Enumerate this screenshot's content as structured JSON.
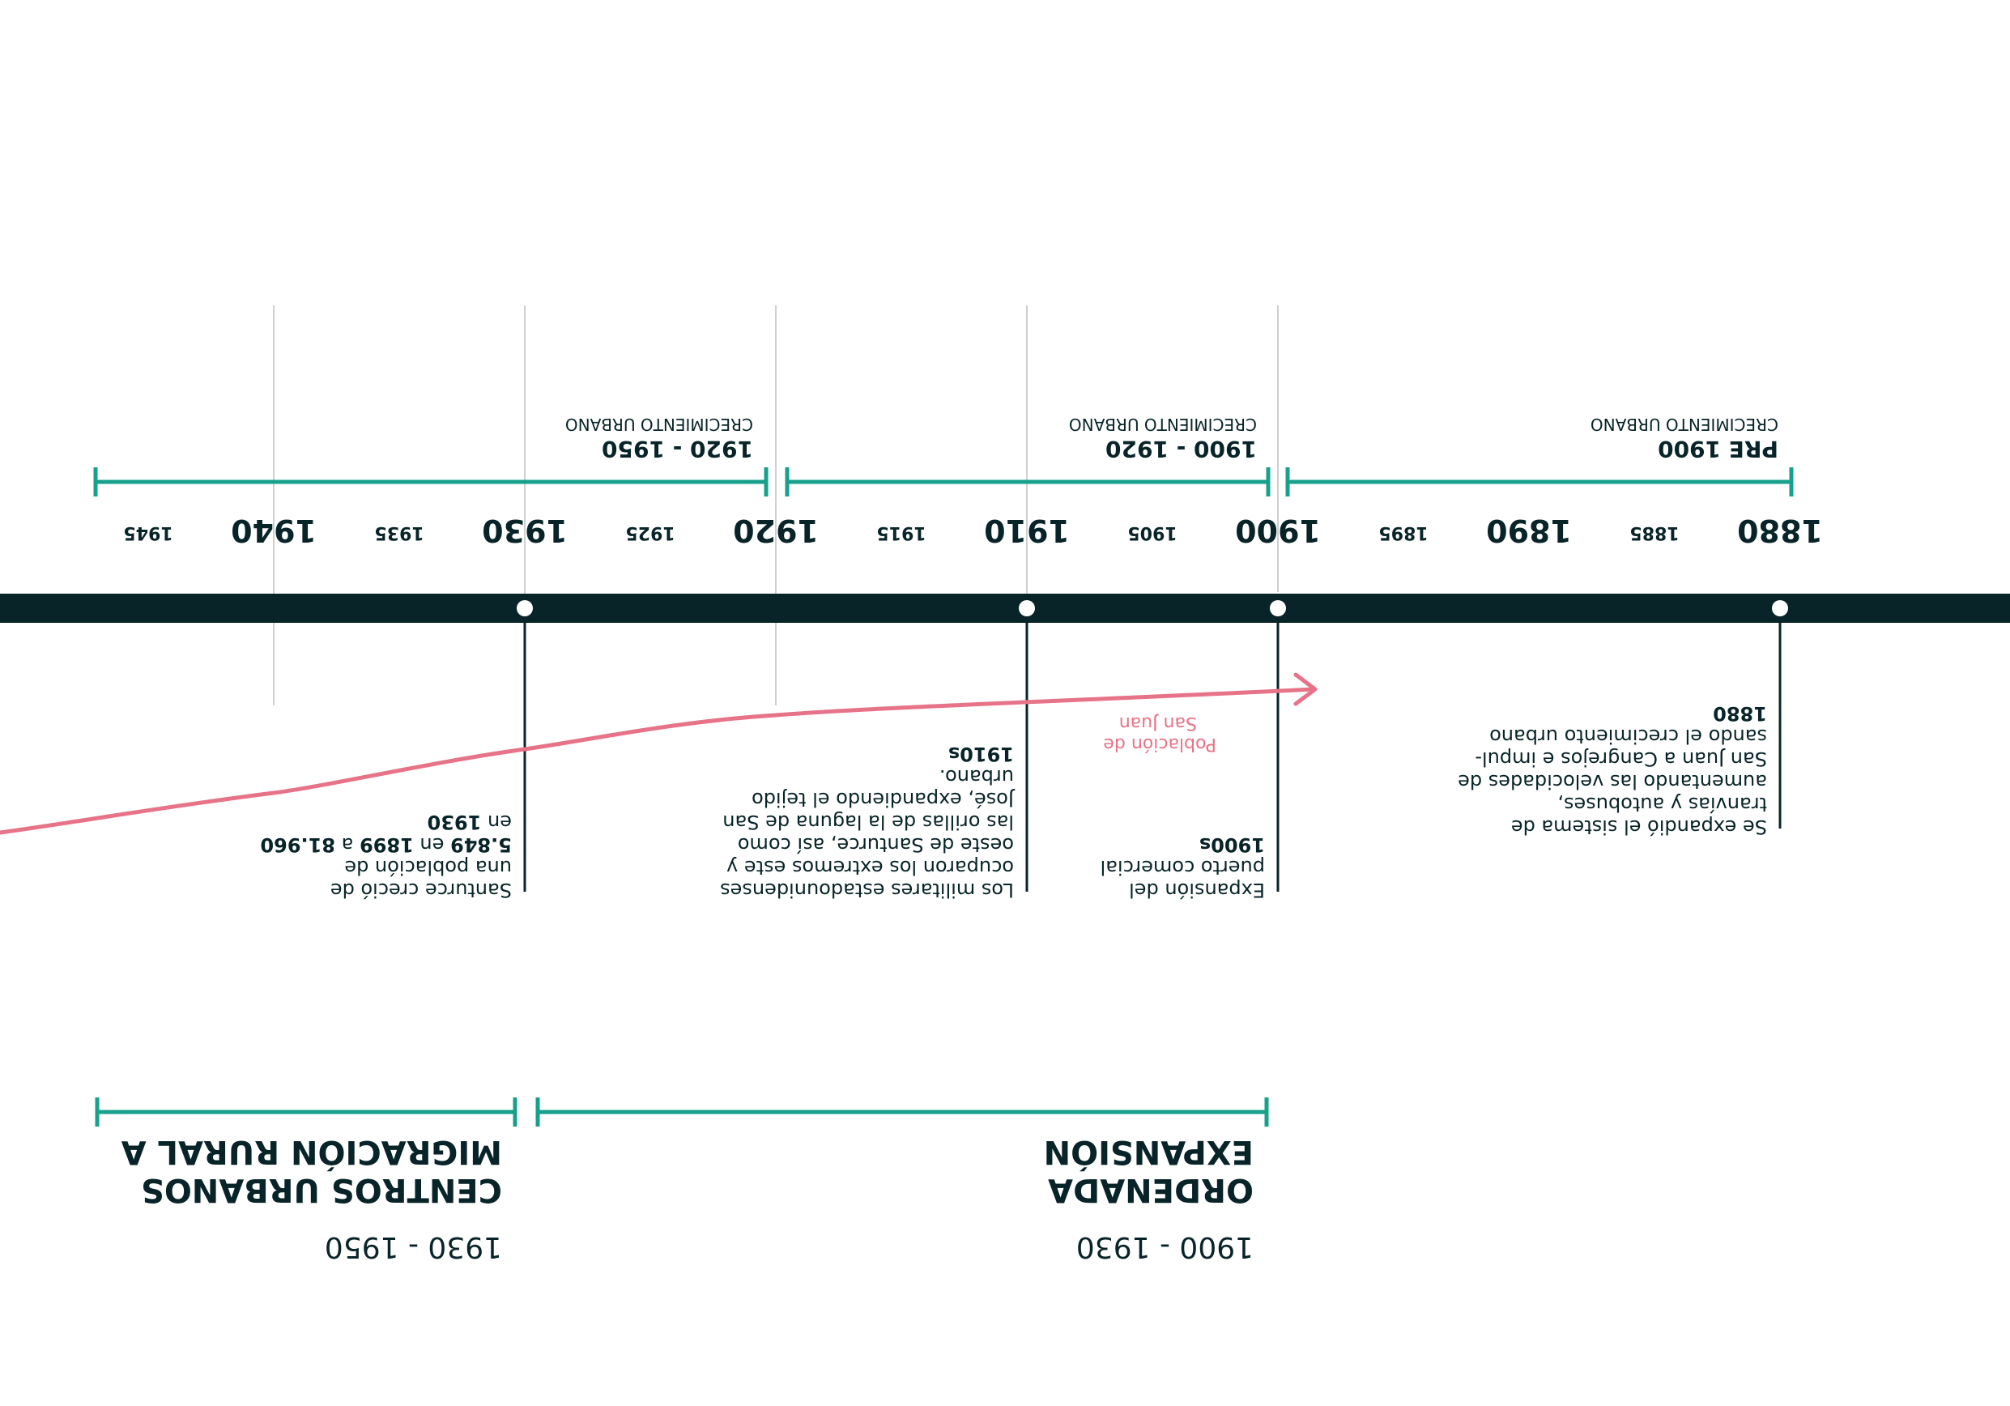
{
  "colors": {
    "axis": "#082428",
    "teal": "#17a08b",
    "pink": "#e77388",
    "grid": "#cfcfcf",
    "text": "#082428"
  },
  "years_major": [
    "1880",
    "1890",
    "1900",
    "1910",
    "1920",
    "1930",
    "1940"
  ],
  "years_minor": [
    "1885",
    "1895",
    "1905",
    "1915",
    "1925",
    "1935",
    "1945"
  ],
  "growth_periods": [
    {
      "id": "pre1900",
      "range": "PRE 1900",
      "label": "CRECIMIENTO URBANO"
    },
    {
      "id": "p1900",
      "range": "1900 - 1920",
      "label": "CRECIMIENTO URBANO"
    },
    {
      "id": "p1920",
      "range": "1920 - 1950",
      "label": "CRECIMIENTO URBANO"
    }
  ],
  "events": [
    {
      "id": "e1880",
      "year": "1880",
      "lines": [
        "Se expandió el sistema de",
        "tranvías y autobuses,",
        "aumentando las velocidades de",
        "San Juan a Cangrejos e impul-",
        "sando el crecimiento urbano"
      ]
    },
    {
      "id": "e1900",
      "year": "1900s",
      "lines": [
        "Expansión del",
        "puerto comercial"
      ]
    },
    {
      "id": "e1910",
      "year": "1910s",
      "lines": [
        "Los militares estadounidenses",
        "ocuparon los extremos este y",
        "oeste de Santurce, así como",
        "las orillas de la laguna de San",
        "José, expandiendo el tejido",
        "urbano."
      ]
    },
    {
      "id": "e1930",
      "line1": "Santurce creció de",
      "line2": "una población de",
      "pop_a": "5.849",
      "en1": "en",
      "year_a": "1899",
      "a": "a",
      "pop_b": "81.960",
      "en2": "en",
      "year_b": "1930"
    }
  ],
  "population_label": [
    "Población de",
    "San Juan"
  ],
  "phases": [
    {
      "id": "expansion",
      "title": [
        "EXPANSIÓN",
        "ORDENADA"
      ],
      "range": "1900 - 1930"
    },
    {
      "id": "migracion",
      "title": [
        "MIGRACIÓN RURAL A",
        "CENTROS URBANOS"
      ],
      "range": "1930 - 1950"
    }
  ]
}
